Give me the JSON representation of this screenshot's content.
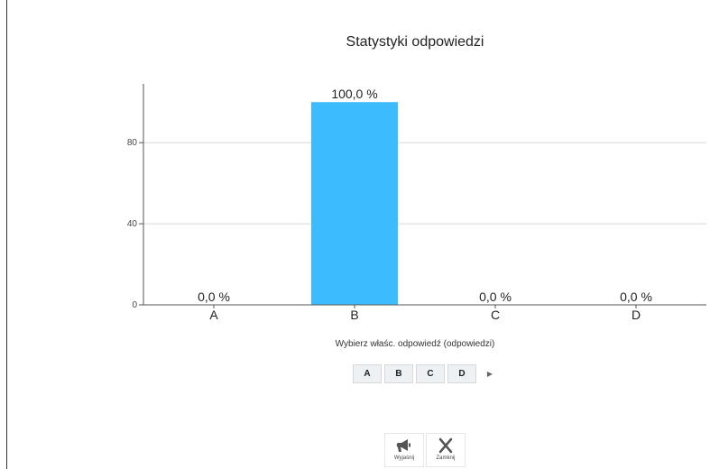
{
  "chart_data": {
    "type": "bar",
    "title": "Statystyki odpowiedzi",
    "categories": [
      "A",
      "B",
      "C",
      "D"
    ],
    "values": [
      0,
      100,
      0,
      0
    ],
    "value_labels": [
      "0,0 %",
      "100,0 %",
      "0,0 %",
      "0,0 %"
    ],
    "y_ticks": [
      0,
      40,
      80
    ],
    "ylim": [
      0,
      109
    ],
    "grid": true,
    "bar_color": "#3dbbff"
  },
  "instruction": "Wybierz właśc. odpowiedź (odpowiedzi)",
  "answer_buttons": [
    "A",
    "B",
    "C",
    "D"
  ],
  "next_icon": "play-arrow-icon",
  "footer": {
    "explain_label": "Wyjaśnij",
    "explain_icon": "megaphone-icon",
    "close_label": "Zamknij",
    "close_icon": "close-icon"
  }
}
